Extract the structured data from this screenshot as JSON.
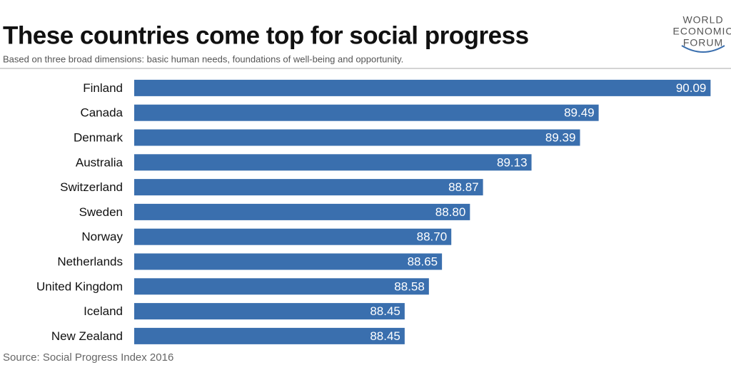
{
  "chart_data": {
    "type": "hbar",
    "title": "These countries come top for social progress",
    "subtitle": "Based on three broad dimensions: basic human needs, foundations of well-being and opportunity.",
    "source": "Source: Social Progress Index 2016",
    "logo": [
      "WORLD",
      "ECONOMIC",
      "FORUM"
    ],
    "categories": [
      "Finland",
      "Canada",
      "Denmark",
      "Australia",
      "Switzerland",
      "Sweden",
      "Norway",
      "Netherlands",
      "United Kingdom",
      "Iceland",
      "New Zealand"
    ],
    "values": [
      90.09,
      89.49,
      89.39,
      89.13,
      88.87,
      88.8,
      88.7,
      88.65,
      88.58,
      88.45,
      88.45
    ],
    "value_labels": [
      "90.09",
      "89.49",
      "89.39",
      "89.13",
      "88.87",
      "88.80",
      "88.70",
      "88.65",
      "88.58",
      "88.45",
      "88.45"
    ],
    "color": "#3a6fae",
    "xlim": [
      87,
      90.1
    ]
  }
}
